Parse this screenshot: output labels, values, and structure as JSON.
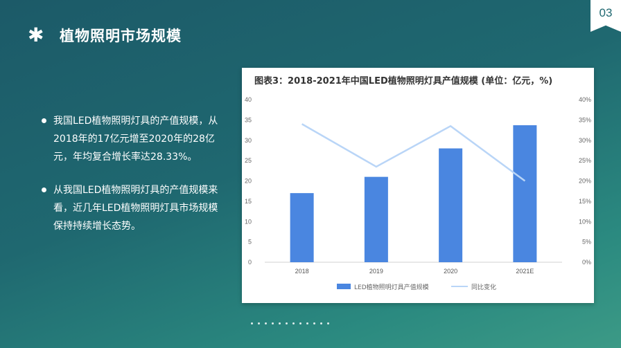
{
  "page_number": "03",
  "header": {
    "icon": "asterisk-icon",
    "title": "植物照明市场规模"
  },
  "bullets": [
    "我国LED植物照明灯具的产值规模，从2018年的17亿元增至2020年的28亿元，年均复合增长率达28.33%。",
    "从我国LED植物照明灯具的产值规模来看，近几年LED植物照明灯具市场规模保持持续增长态势。"
  ],
  "colors": {
    "bar": "#4a86e0",
    "line": "#b9d5f7",
    "accent": "#1f6870"
  },
  "chart_data": {
    "type": "bar",
    "title": "图表3：2018-2021年中国LED植物照明灯具产值规模 (单位：亿元，%)",
    "categories": [
      "2018",
      "2019",
      "2020",
      "2021E"
    ],
    "series": [
      {
        "name": "LED植物照明灯具产值规模",
        "type": "bar",
        "axis": "left",
        "values": [
          17,
          21,
          28,
          33.7
        ]
      },
      {
        "name": "同比变化",
        "type": "line",
        "axis": "right",
        "values": [
          34,
          23.5,
          33.5,
          20
        ]
      }
    ],
    "left_ticks": [
      "0",
      "5",
      "10",
      "15",
      "20",
      "25",
      "30",
      "35",
      "40"
    ],
    "right_ticks": [
      "0%",
      "5%",
      "10%",
      "15%",
      "20%",
      "25%",
      "30%",
      "35%",
      "40%"
    ],
    "ylim": [
      0,
      40
    ],
    "y2lim": [
      0,
      40
    ],
    "legend_position": "bottom"
  }
}
